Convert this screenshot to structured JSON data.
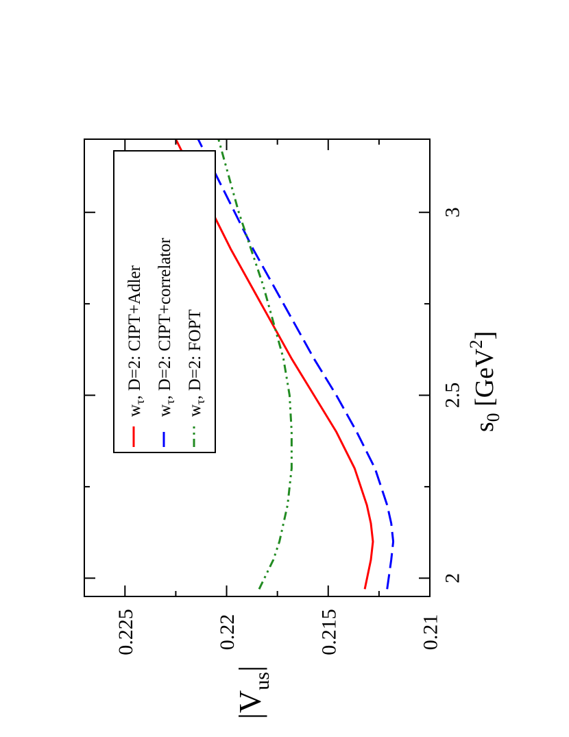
{
  "chart_data": {
    "type": "line",
    "orientation": "rotated-90-ccw",
    "xlabel": {
      "base": "s",
      "sub": "0",
      "unit_open": " [GeV",
      "sup": "2",
      "unit_close": "]"
    },
    "ylabel": {
      "base": "|V",
      "sub": "us",
      "close": "|"
    },
    "xlim": [
      1.95,
      3.2
    ],
    "ylim": [
      0.21,
      0.227
    ],
    "xticks": [
      2,
      2.5,
      3
    ],
    "xtick_labels": [
      "2",
      "2.5",
      "3"
    ],
    "xminor": [
      2.25,
      2.75
    ],
    "yticks": [
      0.21,
      0.215,
      0.22,
      0.225
    ],
    "ytick_labels": [
      "0.21",
      "0.215",
      "0.22",
      "0.225"
    ],
    "yminor": [
      0.2125,
      0.2175,
      0.2225
    ],
    "legend_position": "top-left",
    "series": [
      {
        "name_prefix": "w",
        "name_sub": "τ",
        "name_rest": ", D=2: CIPT+Adler",
        "color": "#ff0000",
        "dash": "solid",
        "x": [
          1.97,
          2.05,
          2.1,
          2.15,
          2.2,
          2.3,
          2.4,
          2.5,
          2.6,
          2.7,
          2.8,
          2.9,
          3.0,
          3.1,
          3.2
        ],
        "y": [
          0.2132,
          0.2129,
          0.2128,
          0.2129,
          0.2131,
          0.2137,
          0.2146,
          0.2157,
          0.2168,
          0.2178,
          0.2188,
          0.2198,
          0.2207,
          0.2216,
          0.2225
        ]
      },
      {
        "name_prefix": "w",
        "name_sub": "τ",
        "name_rest": ", D=2: CIPT+correlator",
        "color": "#0000ff",
        "dash": "dashed",
        "x": [
          1.97,
          2.05,
          2.1,
          2.15,
          2.2,
          2.3,
          2.4,
          2.5,
          2.6,
          2.7,
          2.8,
          2.9,
          3.0,
          3.1,
          3.2
        ],
        "y": [
          0.2121,
          0.2119,
          0.2118,
          0.2119,
          0.2121,
          0.2127,
          0.2136,
          0.2146,
          0.2157,
          0.2167,
          0.2177,
          0.2187,
          0.2196,
          0.2205,
          0.2214
        ]
      },
      {
        "name_prefix": "w",
        "name_sub": "τ",
        "name_rest": ", D=2: FOPT",
        "color": "#228b22",
        "dash": "dash-dot-dot",
        "x": [
          1.97,
          2.05,
          2.1,
          2.2,
          2.3,
          2.4,
          2.5,
          2.6,
          2.7,
          2.8,
          2.9,
          3.0,
          3.1,
          3.2
        ],
        "y": [
          0.2184,
          0.2177,
          0.2174,
          0.217,
          0.2168,
          0.2168,
          0.2169,
          0.2172,
          0.2177,
          0.2182,
          0.2188,
          0.2194,
          0.2199,
          0.2204
        ]
      }
    ]
  }
}
